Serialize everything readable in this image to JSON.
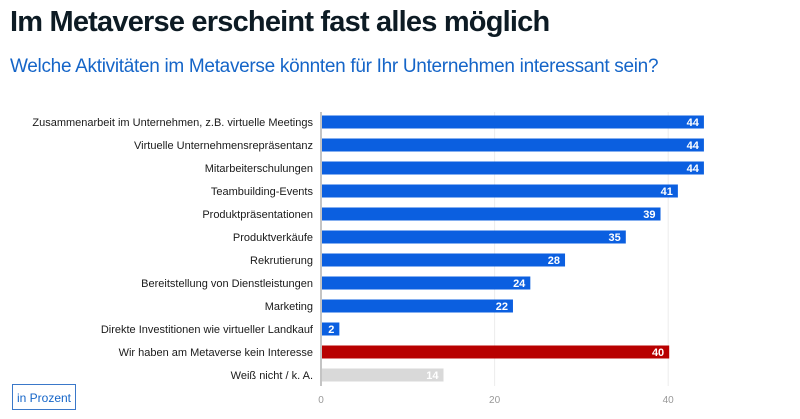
{
  "chart_data": {
    "type": "bar",
    "orientation": "horizontal",
    "title": "Im Metaverse erscheint fast alles möglich",
    "subtitle": "Welche Aktivitäten im Metaverse könnten für Ihr Unternehmen interessant sein?",
    "unit_label": "in Prozent",
    "categories": [
      "Zusammenarbeit im Unternehmen, z.B. virtuelle Meetings",
      "Virtuelle Unternehmensrepräsentanz",
      "Mitarbeiterschulungen",
      "Teambuilding-Events",
      "Produktpräsentationen",
      "Produktverkäufe",
      "Rekrutierung",
      "Bereitstellung von Dienstleistungen",
      "Marketing",
      "Direkte Investitionen wie virtueller Landkauf",
      "Wir haben am Metaverse kein Interesse",
      "Weiß nicht / k. A."
    ],
    "values": [
      44,
      44,
      44,
      41,
      39,
      35,
      28,
      24,
      22,
      2,
      40,
      14
    ],
    "bar_colors": [
      "#0b5fe0",
      "#0b5fe0",
      "#0b5fe0",
      "#0b5fe0",
      "#0b5fe0",
      "#0b5fe0",
      "#0b5fe0",
      "#0b5fe0",
      "#0b5fe0",
      "#0b5fe0",
      "#b80000",
      "#d9d9d9"
    ],
    "xticks": [
      "0",
      "20",
      "40"
    ],
    "xlim": [
      0,
      55
    ],
    "grid": true
  }
}
